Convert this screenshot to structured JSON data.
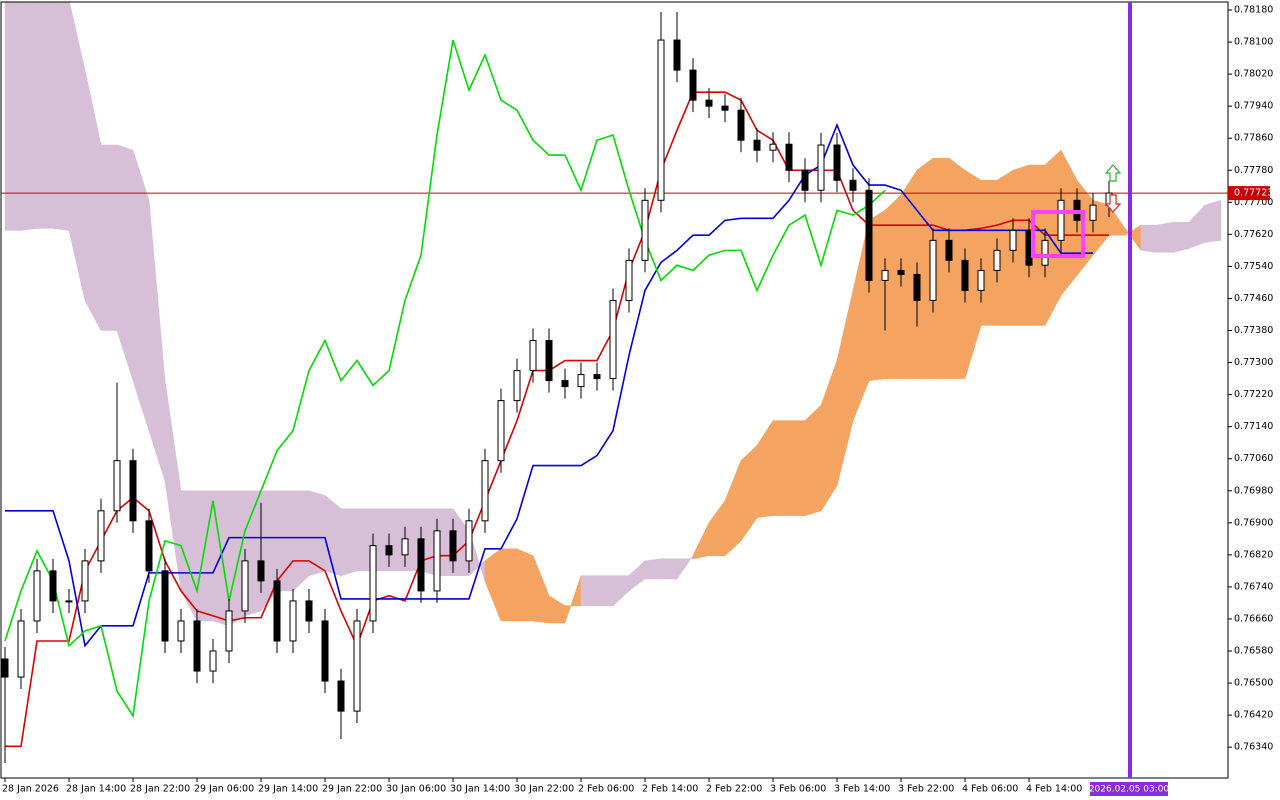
{
  "chart_data": {
    "type": "candlestick",
    "ylim": [
      0.76263,
      0.782
    ],
    "yticks": [
      {
        "value": 0.7818,
        "label": "0.78180"
      },
      {
        "value": 0.781,
        "label": "0.78100"
      },
      {
        "value": 0.7802,
        "label": "0.78020"
      },
      {
        "value": 0.7794,
        "label": "0.77940"
      },
      {
        "value": 0.7786,
        "label": "0.77860"
      },
      {
        "value": 0.7778,
        "label": "0.77780"
      },
      {
        "value": 0.777,
        "label": "0.77700"
      },
      {
        "value": 0.7762,
        "label": "0.77620"
      },
      {
        "value": 0.7754,
        "label": "0.77540"
      },
      {
        "value": 0.7746,
        "label": "0.77460"
      },
      {
        "value": 0.7738,
        "label": "0.77380"
      },
      {
        "value": 0.773,
        "label": "0.77300"
      },
      {
        "value": 0.7722,
        "label": "0.77220"
      },
      {
        "value": 0.7714,
        "label": "0.77140"
      },
      {
        "value": 0.7706,
        "label": "0.77060"
      },
      {
        "value": 0.7698,
        "label": "0.76980"
      },
      {
        "value": 0.769,
        "label": "0.76900"
      },
      {
        "value": 0.7682,
        "label": "0.76820"
      },
      {
        "value": 0.7674,
        "label": "0.76740"
      },
      {
        "value": 0.7666,
        "label": "0.76660"
      },
      {
        "value": 0.7658,
        "label": "0.76580"
      },
      {
        "value": 0.765,
        "label": "0.76500"
      },
      {
        "value": 0.7642,
        "label": "0.76420"
      },
      {
        "value": 0.7634,
        "label": "0.76340"
      }
    ],
    "categories": [
      "28 Jan 2026",
      null,
      null,
      null,
      "28 Jan 14:00",
      null,
      null,
      null,
      "28 Jan 22:00",
      null,
      null,
      null,
      "29 Jan 06:00",
      null,
      null,
      null,
      "29 Jan 14:00",
      null,
      null,
      null,
      "29 Jan 22:00",
      null,
      null,
      null,
      "30 Jan 06:00",
      null,
      null,
      null,
      "30 Jan 14:00",
      null,
      null,
      null,
      "30 Jan 22:00",
      null,
      null,
      null,
      "2 Feb 06:00",
      null,
      null,
      null,
      "2 Feb 14:00",
      null,
      null,
      null,
      "2 Feb 22:00",
      null,
      null,
      null,
      "3 Feb 06:00",
      null,
      null,
      null,
      "3 Feb 14:00",
      null,
      null,
      null,
      "3 Feb 22:00",
      null,
      null,
      null,
      "4 Feb 06:00",
      null,
      null,
      null,
      "4 Feb 14:00",
      null,
      null,
      null,
      null,
      null,
      null,
      null,
      null,
      null,
      null,
      null,
      null
    ],
    "ohlc": {
      "open": [
        0.7656,
        0.76515,
        0.76655,
        0.7678,
        0.76705,
        0.76705,
        0.76805,
        0.7693,
        0.77055,
        0.76905,
        0.7678,
        0.76605,
        0.76655,
        0.7653,
        0.7658,
        0.7668,
        0.76805,
        0.76755,
        0.76605,
        0.76705,
        0.76655,
        0.76505,
        0.7643,
        0.76655,
        0.76843,
        0.7682,
        0.7686,
        0.7673,
        0.7688,
        0.76805,
        0.76905,
        0.77055,
        0.77205,
        0.7728,
        0.77355,
        0.77255,
        0.7724,
        0.7727,
        0.7726,
        0.77455,
        0.77555,
        0.77705,
        0.78105,
        0.7803,
        0.77955,
        0.7794,
        0.7793,
        0.77855,
        0.7783,
        0.77845,
        0.7778,
        0.7773,
        0.77843,
        0.77755,
        0.7773,
        0.77505,
        0.7753,
        0.7752,
        0.77455,
        0.77605,
        0.77555,
        0.7748,
        0.7753,
        0.7758,
        0.7763,
        0.77543,
        0.77605,
        0.77705,
        0.77655,
        0.77693
      ],
      "high": [
        0.7659,
        0.76685,
        0.7681,
        0.7681,
        0.76735,
        0.76835,
        0.7696,
        0.7725,
        0.77085,
        0.76935,
        0.7681,
        0.76685,
        0.76685,
        0.7661,
        0.7671,
        0.76835,
        0.7695,
        0.76785,
        0.76735,
        0.76735,
        0.76685,
        0.76535,
        0.76685,
        0.76873,
        0.76873,
        0.7689,
        0.7689,
        0.7691,
        0.7691,
        0.76935,
        0.77085,
        0.77235,
        0.7731,
        0.77385,
        0.77385,
        0.77285,
        0.773,
        0.773,
        0.77485,
        0.77585,
        0.77735,
        0.78175,
        0.78175,
        0.7806,
        0.77985,
        0.7797,
        0.7796,
        0.77885,
        0.77875,
        0.77875,
        0.7781,
        0.77873,
        0.77873,
        0.77785,
        0.7776,
        0.7756,
        0.7756,
        0.7755,
        0.77635,
        0.77635,
        0.77585,
        0.7756,
        0.7761,
        0.7766,
        0.7766,
        0.77635,
        0.77735,
        0.77735,
        0.77723,
        0.77753
      ],
      "low": [
        0.763,
        0.76485,
        0.76625,
        0.76675,
        0.76675,
        0.76675,
        0.76775,
        0.769,
        0.76875,
        0.7675,
        0.76575,
        0.76575,
        0.765,
        0.765,
        0.7655,
        0.7665,
        0.76725,
        0.76575,
        0.76575,
        0.76625,
        0.76475,
        0.7636,
        0.764,
        0.76625,
        0.7679,
        0.7679,
        0.767,
        0.767,
        0.76775,
        0.76775,
        0.76875,
        0.77025,
        0.77175,
        0.7725,
        0.77225,
        0.7721,
        0.7721,
        0.7723,
        0.7723,
        0.77425,
        0.77525,
        0.77675,
        0.78,
        0.77925,
        0.7791,
        0.779,
        0.77825,
        0.778,
        0.778,
        0.7775,
        0.777,
        0.777,
        0.77725,
        0.777,
        0.77475,
        0.7738,
        0.7749,
        0.7739,
        0.77425,
        0.77525,
        0.7745,
        0.7745,
        0.775,
        0.7755,
        0.77513,
        0.77513,
        0.77575,
        0.77625,
        0.77625,
        0.77663
      ],
      "close": [
        0.76515,
        0.76655,
        0.7678,
        0.76705,
        0.76705,
        0.76805,
        0.7693,
        0.77055,
        0.76905,
        0.7678,
        0.76605,
        0.76655,
        0.7653,
        0.7658,
        0.7668,
        0.76805,
        0.76755,
        0.76605,
        0.76705,
        0.76655,
        0.76505,
        0.7643,
        0.76655,
        0.76843,
        0.7682,
        0.7686,
        0.7673,
        0.7688,
        0.76805,
        0.76905,
        0.77055,
        0.77205,
        0.7728,
        0.77355,
        0.77255,
        0.7724,
        0.7727,
        0.7726,
        0.77455,
        0.77555,
        0.77705,
        0.78105,
        0.7803,
        0.77955,
        0.7794,
        0.7793,
        0.77855,
        0.7783,
        0.77845,
        0.7778,
        0.7773,
        0.77843,
        0.77755,
        0.7773,
        0.77505,
        0.7753,
        0.7752,
        0.77455,
        0.77605,
        0.77555,
        0.7748,
        0.7753,
        0.7758,
        0.7763,
        0.77543,
        0.77605,
        0.77705,
        0.77655,
        0.77693,
        0.77723
      ]
    },
    "candle_up_color": "#ffffff",
    "candle_down_color": "#000000",
    "cloud": {
      "bull_color": "#f4a460",
      "bear_color": "#d8bfd8",
      "span_a": [
        0.7763,
        0.7763,
        0.77635,
        0.77635,
        0.7763,
        0.77455,
        0.7738,
        0.7738,
        0.77255,
        0.7713,
        0.77005,
        0.7673,
        0.76655,
        0.76655,
        0.76643,
        0.76668,
        0.7668,
        0.7673,
        0.7673,
        0.76768,
        0.7678,
        0.76768,
        0.7678,
        0.7678,
        0.7678,
        0.7678,
        0.7678,
        0.76768,
        0.76768,
        0.76768,
        0.76805,
        0.76835,
        0.76835,
        0.76818,
        0.76718,
        0.76693,
        0.76693,
        0.76693,
        0.76693,
        0.7673,
        0.7676,
        0.7676,
        0.7676,
        0.76818,
        0.769,
        0.76955,
        0.77055,
        0.77093,
        0.77155,
        0.77155,
        0.77155,
        0.77193,
        0.77305,
        0.7748,
        0.77655,
        0.7768,
        0.77718,
        0.7778,
        0.7781,
        0.7781,
        0.7778,
        0.77755,
        0.77755,
        0.7778,
        0.77793,
        0.77793,
        0.7783,
        0.77755,
        0.77705,
        0.77693,
        0.77635,
        0.7758,
        0.77575,
        0.77575,
        0.77585,
        0.776,
        0.77605
      ],
      "span_b": [
        0.78205,
        0.78205,
        0.78205,
        0.78205,
        0.78205,
        0.7803,
        0.77843,
        0.77843,
        0.7783,
        0.77705,
        0.77255,
        0.7698,
        0.7698,
        0.7698,
        0.7698,
        0.7698,
        0.7698,
        0.7698,
        0.7698,
        0.7698,
        0.76968,
        0.76935,
        0.76935,
        0.76935,
        0.76935,
        0.76935,
        0.76935,
        0.76935,
        0.76935,
        0.7688,
        0.76755,
        0.76655,
        0.76655,
        0.76655,
        0.7665,
        0.7665,
        0.76768,
        0.76768,
        0.76768,
        0.76768,
        0.76805,
        0.7681,
        0.7681,
        0.7681,
        0.76818,
        0.76818,
        0.76855,
        0.76913,
        0.76918,
        0.76918,
        0.76918,
        0.7693,
        0.76993,
        0.77155,
        0.77255,
        0.7726,
        0.7726,
        0.7726,
        0.7726,
        0.7726,
        0.7726,
        0.77393,
        0.77393,
        0.77393,
        0.77393,
        0.77393,
        0.77468,
        0.77518,
        0.77568,
        0.77618,
        0.77618,
        0.77643,
        0.77643,
        0.7765,
        0.7765,
        0.77693,
        0.77705
      ]
    },
    "lines": [
      {
        "color": "#dd0000",
        "values": [
          0.76342,
          0.76342,
          0.76605,
          0.76605,
          0.76605,
          0.7678,
          0.76855,
          0.7693,
          0.76963,
          0.7693,
          0.76805,
          0.7673,
          0.7668,
          0.76668,
          0.76655,
          0.76663,
          0.76663,
          0.76755,
          0.76805,
          0.76805,
          0.7678,
          0.7668,
          0.76593,
          0.76705,
          0.76718,
          0.76705,
          0.76805,
          0.76818,
          0.76818,
          0.76855,
          0.76955,
          0.77055,
          0.77155,
          0.7728,
          0.7728,
          0.77305,
          0.77305,
          0.77305,
          0.7738,
          0.7753,
          0.7763,
          0.7778,
          0.7788,
          0.77975,
          0.77975,
          0.77975,
          0.77955,
          0.7788,
          0.77855,
          0.7778,
          0.7778,
          0.7778,
          0.7778,
          0.7768,
          0.77643,
          0.77643,
          0.77643,
          0.77643,
          0.77643,
          0.7763,
          0.7763,
          0.77635,
          0.77643,
          0.77655,
          0.77655,
          0.77618,
          0.77618,
          0.77618,
          0.77618,
          0.77618
        ]
      },
      {
        "color": "#0000dd",
        "values": [
          0.7693,
          0.7693,
          0.7693,
          0.7693,
          0.76805,
          0.76593,
          0.76643,
          0.76643,
          0.76643,
          0.76775,
          0.76775,
          0.76775,
          0.76775,
          0.76775,
          0.76863,
          0.76863,
          0.76863,
          0.76863,
          0.76863,
          0.76863,
          0.76863,
          0.7671,
          0.7671,
          0.7671,
          0.7671,
          0.7671,
          0.7671,
          0.7671,
          0.7671,
          0.7671,
          0.76835,
          0.76835,
          0.7691,
          0.77043,
          0.77043,
          0.77043,
          0.77043,
          0.77068,
          0.7713,
          0.77318,
          0.7748,
          0.7755,
          0.7758,
          0.77618,
          0.77618,
          0.77655,
          0.7766,
          0.7766,
          0.7766,
          0.77705,
          0.77768,
          0.77793,
          0.77893,
          0.77793,
          0.77743,
          0.77743,
          0.7773,
          0.7768,
          0.7763,
          0.7763,
          0.7763,
          0.7763,
          0.7763,
          0.7763,
          0.7763,
          0.7763,
          0.77573,
          0.77573,
          0.77573,
          null
        ]
      },
      {
        "color": "#00dd00",
        "values": [
          0.76605,
          0.7673,
          0.7683,
          0.76755,
          0.76593,
          0.7663,
          0.76643,
          0.7648,
          0.76418,
          0.76705,
          0.76855,
          0.76843,
          0.7673,
          0.76955,
          0.76705,
          0.7688,
          0.7698,
          0.7708,
          0.7713,
          0.7728,
          0.77355,
          0.77255,
          0.77305,
          0.77243,
          0.7728,
          0.77455,
          0.77568,
          0.77868,
          0.78105,
          0.7798,
          0.78068,
          0.77955,
          0.7793,
          0.77855,
          0.77818,
          0.77818,
          0.7773,
          0.77855,
          0.77868,
          0.7773,
          0.77605,
          0.77505,
          0.77543,
          0.7753,
          0.77568,
          0.7758,
          0.7758,
          0.7748,
          0.77568,
          0.77643,
          0.77668,
          0.77543,
          0.7768,
          0.77668,
          0.77693,
          0.7773,
          null,
          null,
          null,
          null,
          null,
          null,
          null,
          null,
          null,
          null,
          null,
          null,
          null,
          null
        ]
      }
    ],
    "current_price": 0.77723,
    "current_price_color": "#cc0000",
    "cursor_time": "2026.02.05 03:00",
    "cursor_color": "#8a2be2"
  }
}
